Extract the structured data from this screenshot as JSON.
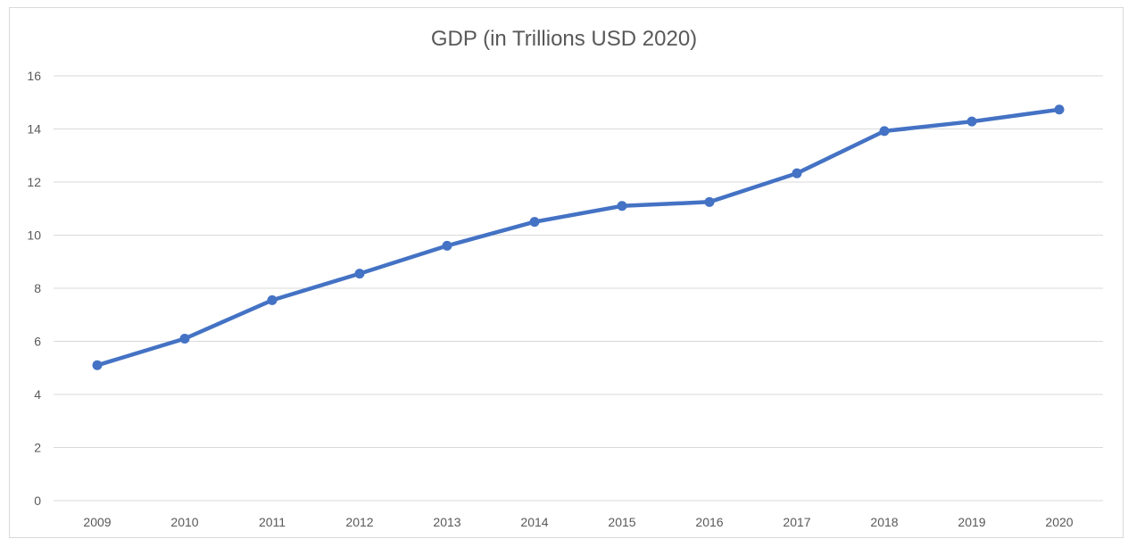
{
  "chart_data": {
    "type": "line",
    "title": "GDP (in Trillions USD 2020)",
    "xlabel": "",
    "ylabel": "",
    "categories": [
      "2009",
      "2010",
      "2011",
      "2012",
      "2013",
      "2014",
      "2015",
      "2016",
      "2017",
      "2018",
      "2019",
      "2020"
    ],
    "series": [
      {
        "values": [
          5.1,
          6.1,
          7.55,
          8.55,
          9.6,
          10.5,
          11.1,
          11.25,
          12.33,
          13.92,
          14.28,
          14.73
        ]
      }
    ],
    "ylim": [
      0,
      16
    ],
    "yticks": [
      "0",
      "2",
      "4",
      "6",
      "8",
      "10",
      "12",
      "14",
      "16"
    ],
    "grid": true,
    "legend": "none",
    "colors": {
      "line": "#4472c4",
      "grid": "#d9d9d9",
      "text": "#595959"
    }
  }
}
